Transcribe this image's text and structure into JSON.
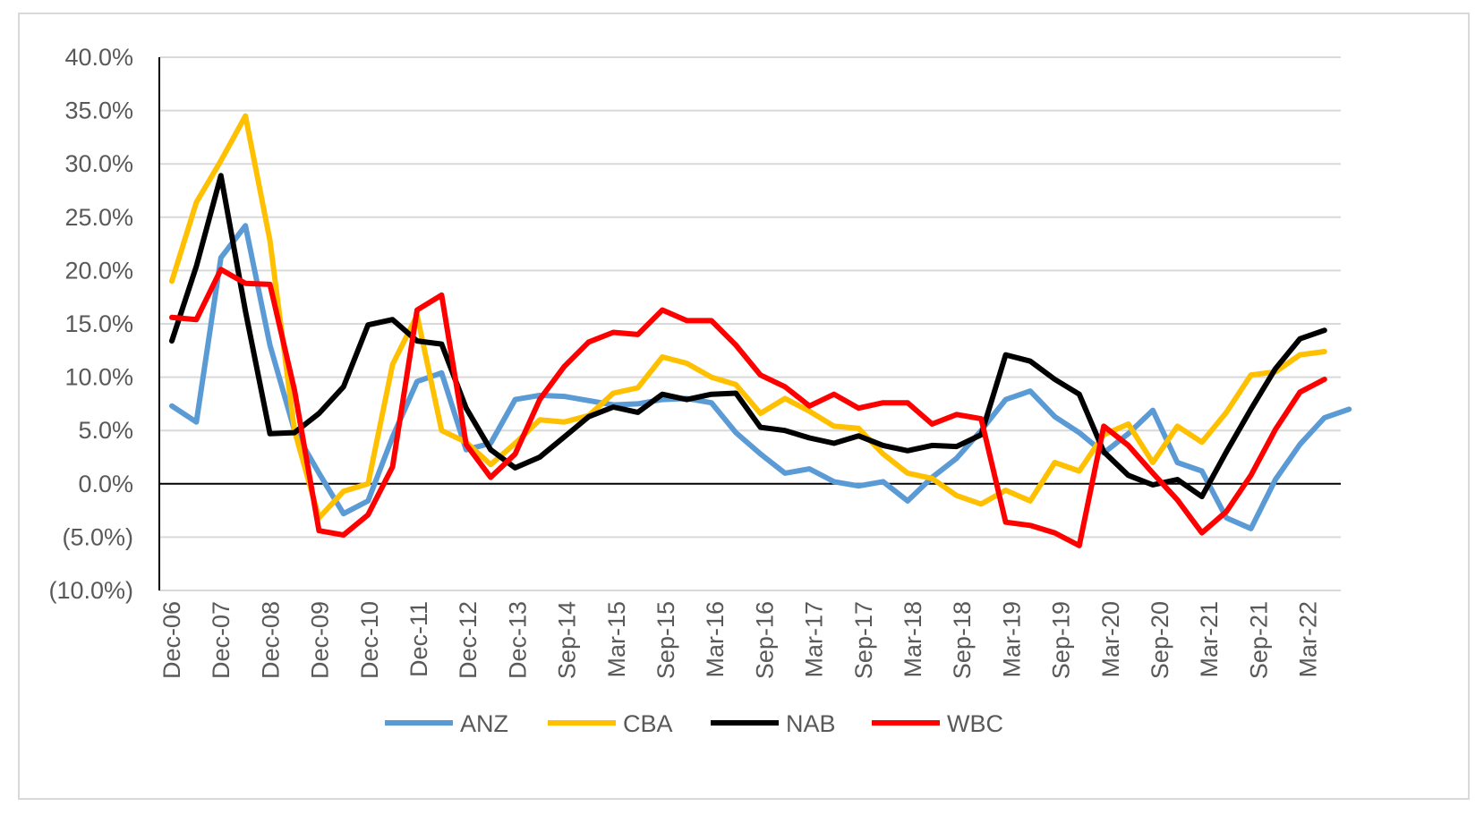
{
  "chart_data": {
    "type": "line",
    "title": "",
    "xlabel": "",
    "ylabel": "",
    "ylim": [
      -10,
      40
    ],
    "y_ticks": [
      40,
      35,
      30,
      25,
      20,
      15,
      10,
      5,
      0,
      -5,
      -10
    ],
    "y_tick_labels": [
      "40.0%",
      "35.0%",
      "30.0%",
      "25.0%",
      "20.0%",
      "15.0%",
      "10.0%",
      "5.0%",
      "0.0%",
      "(5.0%)",
      "(10.0%)"
    ],
    "negative_label_color": "#ff0000",
    "x_tick_labels": [
      "Dec-06",
      "Dec-07",
      "Dec-08",
      "Dec-09",
      "Dec-10",
      "Dec-11",
      "Dec-12",
      "Dec-13",
      "Sep-14",
      "Mar-15",
      "Sep-15",
      "Mar-16",
      "Sep-16",
      "Mar-17",
      "Sep-17",
      "Mar-18",
      "Sep-18",
      "Mar-19",
      "Sep-19",
      "Mar-20",
      "Sep-20",
      "Mar-21",
      "Sep-21",
      "Mar-22"
    ],
    "grid": true,
    "legend_position": "bottom",
    "series": [
      {
        "name": "ANZ",
        "color": "#5b9bd5",
        "values": [
          7.3,
          5.8,
          21.2,
          24.2,
          13.0,
          5.0,
          1.0,
          -2.8,
          -1.6,
          4.4,
          9.6,
          10.4,
          3.2,
          3.8,
          7.9,
          8.3,
          8.2,
          7.8,
          7.4,
          7.5,
          7.9,
          8.0,
          7.6,
          4.8,
          2.8,
          1.0,
          1.4,
          0.2,
          -0.2,
          0.2,
          -1.6,
          0.6,
          2.4,
          5.0,
          7.9,
          8.7,
          6.3,
          4.8,
          2.9,
          4.7,
          6.9,
          2.0,
          1.2,
          -3.2,
          -4.2,
          0.4,
          3.7,
          6.2,
          7.0
        ]
      },
      {
        "name": "CBA",
        "color": "#ffc000",
        "values": [
          19.0,
          26.4,
          30.3,
          34.5,
          22.8,
          5.0,
          -3.2,
          -0.7,
          0.0,
          11.2,
          15.8,
          5.0,
          3.9,
          1.8,
          3.8,
          6.0,
          5.8,
          6.4,
          8.5,
          9.0,
          11.9,
          11.3,
          10.0,
          9.3,
          6.6,
          8.0,
          6.8,
          5.4,
          5.2,
          2.8,
          1.0,
          0.5,
          -1.1,
          -1.9,
          -0.6,
          -1.6,
          2.0,
          1.2,
          4.6,
          5.6,
          2.0,
          5.4,
          3.9,
          6.7,
          10.2,
          10.5,
          12.1,
          12.4
        ]
      },
      {
        "name": "NAB",
        "color": "#000000",
        "values": [
          13.4,
          20.4,
          28.9,
          16.2,
          4.7,
          4.8,
          6.6,
          9.1,
          14.9,
          15.4,
          13.4,
          13.1,
          7.1,
          3.2,
          1.5,
          2.5,
          4.4,
          6.3,
          7.2,
          6.7,
          8.4,
          7.9,
          8.4,
          8.5,
          5.3,
          5.0,
          4.3,
          3.8,
          4.5,
          3.6,
          3.1,
          3.6,
          3.5,
          4.6,
          12.1,
          11.5,
          9.8,
          8.4,
          3.0,
          0.8,
          -0.1,
          0.4,
          -1.2,
          3.0,
          7.0,
          10.8,
          13.6,
          14.4
        ]
      },
      {
        "name": "WBC",
        "color": "#ff0000",
        "values": [
          15.6,
          15.4,
          20.1,
          18.8,
          18.7,
          8.8,
          -4.4,
          -4.8,
          -2.9,
          1.6,
          16.3,
          17.7,
          3.7,
          0.6,
          2.8,
          7.9,
          11.0,
          13.3,
          14.2,
          14.0,
          16.3,
          15.3,
          15.3,
          13.0,
          10.2,
          9.1,
          7.3,
          8.4,
          7.1,
          7.6,
          7.6,
          5.6,
          6.5,
          6.1,
          -3.6,
          -3.9,
          -4.6,
          -5.8,
          5.4,
          3.6,
          1.0,
          -1.5,
          -4.6,
          -2.6,
          0.8,
          5.1,
          8.6,
          9.8
        ]
      }
    ]
  }
}
